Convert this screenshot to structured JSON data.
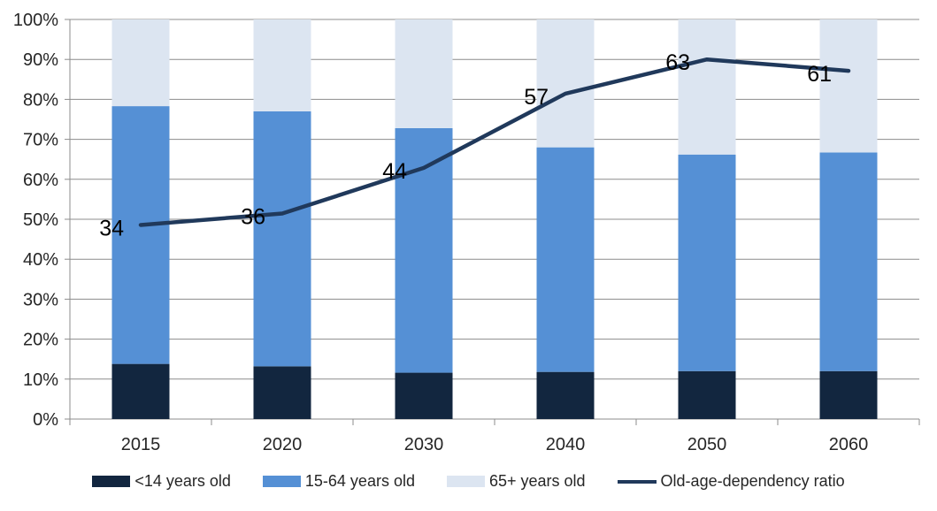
{
  "chart_data": {
    "type": "bar",
    "subtype": "stacked-column-with-line-overlay",
    "title": "",
    "xlabel": "",
    "ylabel": "",
    "categories": [
      "2015",
      "2020",
      "2030",
      "2040",
      "2050",
      "2060"
    ],
    "series": [
      {
        "name": "<14 years old",
        "color": "#12263F",
        "values": [
          13.8,
          13.2,
          11.6,
          11.8,
          12.0,
          12.0
        ]
      },
      {
        "name": "15-64 years old",
        "color": "#5590D5",
        "values": [
          64.5,
          63.8,
          61.2,
          56.2,
          54.2,
          54.7
        ]
      },
      {
        "name": "65+ years old",
        "color": "#DCE5F1",
        "values": [
          21.7,
          23.0,
          27.2,
          32.0,
          33.8,
          33.3
        ]
      }
    ],
    "line_series": {
      "name": "Old-age-dependency ratio",
      "color": "#20395B",
      "values": [
        34,
        36,
        44,
        57,
        63,
        61
      ],
      "data_labels": [
        "34",
        "36",
        "44",
        "57",
        "63",
        "61"
      ],
      "secondary_axis_min": 0,
      "secondary_axis_max": 70
    },
    "y_axis": {
      "min": 0,
      "max": 100,
      "ticks": [
        "100%",
        "90%",
        "80%",
        "70%",
        "60%",
        "50%",
        "40%",
        "30%",
        "20%",
        "10%",
        "0%"
      ]
    },
    "grid": true,
    "legend_position": "bottom",
    "colors": {
      "grid": "#8C8C8C",
      "axis": "#8C8C8C",
      "tick_label": "#262626",
      "data_label": "#000000",
      "background": "#FFFFFF"
    }
  }
}
